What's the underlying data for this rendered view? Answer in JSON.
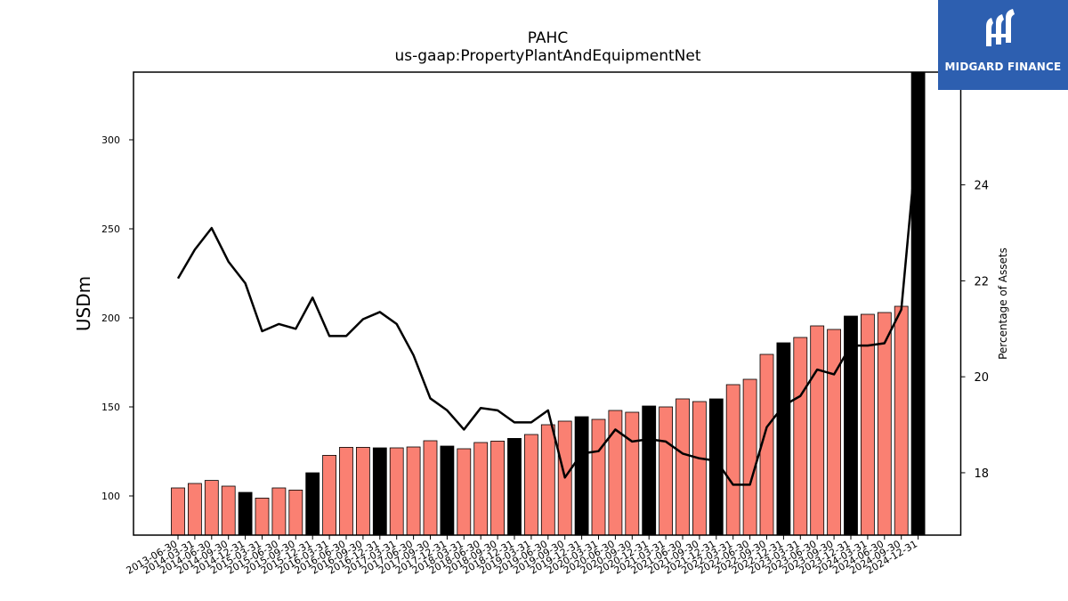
{
  "chart_data": {
    "type": "bar",
    "title": "PAHC",
    "subtitle": "us-gaap:PropertyPlantAndEquipmentNet",
    "ylabel": "USDm",
    "y2label": "Percentage of Assets",
    "ylim": [
      78,
      338
    ],
    "y2lim": [
      16.7,
      26.35
    ],
    "yticks": [
      100,
      150,
      200,
      250,
      300
    ],
    "y2ticks": [
      18,
      20,
      22,
      24
    ],
    "colors": {
      "annual": "#000000",
      "quarter": "#fa8072",
      "line": "#000000"
    },
    "categories": [
      "2013-06-30",
      "2014-03-31",
      "2014-06-30",
      "2014-09-30",
      "2014-12-31",
      "2015-03-31",
      "2015-06-30",
      "2015-09-30",
      "2015-12-31",
      "2016-03-31",
      "2016-06-30",
      "2016-09-30",
      "2016-12-31",
      "2017-03-31",
      "2017-06-30",
      "2017-09-30",
      "2017-12-31",
      "2018-03-31",
      "2018-06-30",
      "2018-09-30",
      "2018-12-31",
      "2019-03-31",
      "2019-06-30",
      "2019-09-30",
      "2019-12-31",
      "2020-03-31",
      "2020-06-30",
      "2020-09-30",
      "2020-12-31",
      "2021-03-31",
      "2021-06-30",
      "2021-09-30",
      "2021-12-31",
      "2022-03-31",
      "2022-06-30",
      "2022-09-30",
      "2022-12-31",
      "2023-03-31",
      "2023-06-30",
      "2023-09-30",
      "2023-12-31",
      "2024-03-31",
      "2024-06-30",
      "2024-09-30",
      "2024-12-31"
    ],
    "values": [
      104.5,
      107,
      108.7,
      105.5,
      102,
      98.8,
      104.5,
      103.3,
      113,
      122.8,
      127.3,
      127.3,
      127,
      127,
      127.5,
      131,
      128,
      126.5,
      130,
      130.8,
      132.3,
      134.5,
      140,
      142,
      144.5,
      143,
      148,
      147,
      150.5,
      150,
      154.5,
      153,
      154.5,
      162.5,
      165.5,
      179.5,
      186,
      189,
      195.5,
      193.5,
      201,
      202,
      203,
      206.5,
      338
    ],
    "annual": [
      false,
      false,
      false,
      false,
      true,
      false,
      false,
      false,
      true,
      false,
      false,
      false,
      true,
      false,
      false,
      false,
      true,
      false,
      false,
      false,
      true,
      false,
      false,
      false,
      true,
      false,
      false,
      false,
      true,
      false,
      false,
      false,
      true,
      false,
      false,
      false,
      true,
      false,
      false,
      false,
      true,
      false,
      false,
      false,
      true
    ],
    "series": [
      {
        "name": "Percentage of Assets",
        "values": [
          22.05,
          22.65,
          23.1,
          22.4,
          21.95,
          20.95,
          21.1,
          21,
          21.65,
          20.85,
          20.85,
          21.2,
          21.35,
          21.1,
          20.45,
          19.55,
          19.3,
          18.9,
          19.35,
          19.3,
          19.05,
          19.05,
          19.3,
          17.9,
          18.4,
          18.45,
          18.9,
          18.65,
          18.7,
          18.65,
          18.4,
          18.3,
          18.25,
          17.75,
          17.75,
          18.95,
          19.4,
          19.6,
          20.15,
          20.05,
          20.65,
          20.65,
          20.7,
          21.4,
          25.2
        ]
      }
    ]
  },
  "logo": {
    "text": "MIDGARD FINANCE"
  }
}
